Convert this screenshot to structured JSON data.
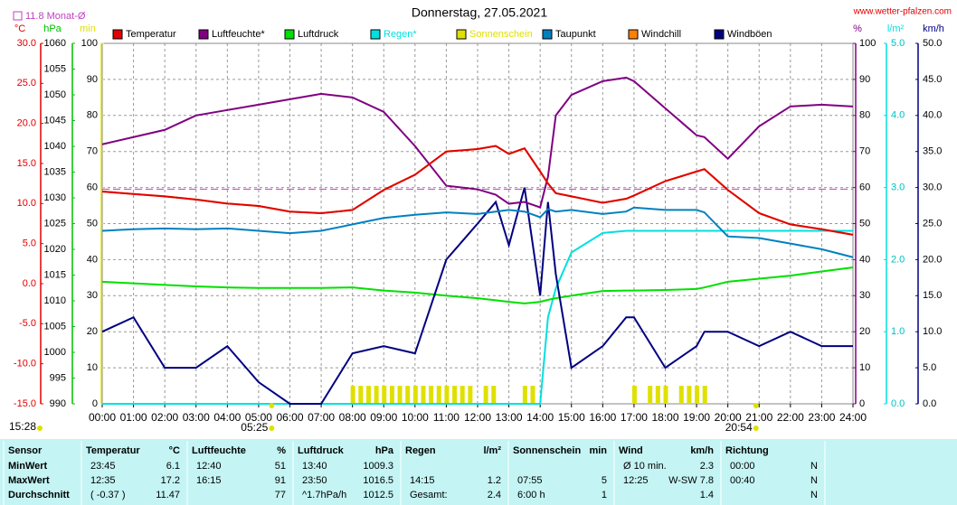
{
  "chart_data": {
    "type": "line",
    "title": "Donnerstag, 27.05.2021",
    "site": "www.wetter-pfalzen.com",
    "grid": true,
    "xlim": [
      0,
      24
    ],
    "xticks": [
      {
        "value": 0,
        "label": "00:00"
      },
      {
        "value": 1,
        "label": "01:00"
      },
      {
        "value": 2,
        "label": "02:00"
      },
      {
        "value": 3,
        "label": "03:00"
      },
      {
        "value": 4,
        "label": "04:00"
      },
      {
        "value": 5,
        "label": "05:00"
      },
      {
        "value": 6,
        "label": "06:00"
      },
      {
        "value": 7,
        "label": "07:00"
      },
      {
        "value": 8,
        "label": "08:00"
      },
      {
        "value": 9,
        "label": "09:00"
      },
      {
        "value": 10,
        "label": "10:00"
      },
      {
        "value": 11,
        "label": "11:00"
      },
      {
        "value": 12,
        "label": "12:00"
      },
      {
        "value": 13,
        "label": "13:00"
      },
      {
        "value": 14,
        "label": "14:00"
      },
      {
        "value": 15,
        "label": "15:00"
      },
      {
        "value": 16,
        "label": "16:00"
      },
      {
        "value": 17,
        "label": "17:00"
      },
      {
        "value": 18,
        "label": "18:00"
      },
      {
        "value": 19,
        "label": "19:00"
      },
      {
        "value": 20,
        "label": "20:00"
      },
      {
        "value": 21,
        "label": "21:00"
      },
      {
        "value": 22,
        "label": "22:00"
      },
      {
        "value": 23,
        "label": "23:00"
      },
      {
        "value": 24,
        "label": "24:00"
      }
    ],
    "axes": [
      {
        "unit": "°C",
        "side": "left",
        "color": "#e00000",
        "tick_color": "#e00000",
        "lim": [
          -15,
          30
        ],
        "ticks": [
          {
            "value": -15,
            "label": "-15.0"
          },
          {
            "value": -10,
            "label": "-10.0"
          },
          {
            "value": -5,
            "label": "-5.0"
          },
          {
            "value": 0,
            "label": "0.0"
          },
          {
            "value": 5,
            "label": "5.0"
          },
          {
            "value": 10,
            "label": "10.0"
          },
          {
            "value": 15,
            "label": "15.0"
          },
          {
            "value": 20,
            "label": "20.0"
          },
          {
            "value": 25,
            "label": "25.0"
          },
          {
            "value": 30,
            "label": "30.0"
          }
        ]
      },
      {
        "unit": "hPa",
        "side": "left",
        "color": "#00c000",
        "tick_color": "#000000",
        "lim": [
          990,
          1060
        ],
        "ticks": [
          990,
          995,
          1000,
          1005,
          1010,
          1015,
          1020,
          1025,
          1030,
          1035,
          1040,
          1045,
          1050,
          1055,
          1060
        ]
      },
      {
        "unit": "min",
        "side": "left",
        "color": "#e0e000",
        "tick_color": "#000000",
        "lim": [
          0,
          100
        ],
        "ticks": [
          0,
          10,
          20,
          30,
          40,
          50,
          60,
          70,
          80,
          90,
          100
        ]
      },
      {
        "unit": "%",
        "side": "right",
        "color": "#800080",
        "tick_color": "#000000",
        "lim": [
          0,
          100
        ],
        "ticks": [
          0,
          10,
          20,
          30,
          40,
          50,
          60,
          70,
          80,
          90,
          100
        ]
      },
      {
        "unit": "l/m²",
        "side": "right",
        "color": "#00e0e0",
        "tick_color": "#00c0c0",
        "lim": [
          0,
          5
        ],
        "ticks": [
          {
            "value": 0,
            "label": "0.0"
          },
          {
            "value": 1,
            "label": "1.0"
          },
          {
            "value": 2,
            "label": "2.0"
          },
          {
            "value": 3,
            "label": "3.0"
          },
          {
            "value": 4,
            "label": "4.0"
          },
          {
            "value": 5,
            "label": "5.0"
          }
        ]
      },
      {
        "unit": "km/h",
        "side": "right",
        "color": "#000080",
        "tick_color": "#000000",
        "lim": [
          0,
          50
        ],
        "ticks": [
          {
            "value": 0,
            "label": "0.0"
          },
          {
            "value": 5,
            "label": "5.0"
          },
          {
            "value": 10,
            "label": "10.0"
          },
          {
            "value": 15,
            "label": "15.0"
          },
          {
            "value": 20,
            "label": "20.0"
          },
          {
            "value": 25,
            "label": "25.0"
          },
          {
            "value": 30,
            "label": "30.0"
          },
          {
            "value": 35,
            "label": "35.0"
          },
          {
            "value": 40,
            "label": "40.0"
          },
          {
            "value": 45,
            "label": "45.0"
          },
          {
            "value": 50,
            "label": "50.0"
          }
        ]
      }
    ],
    "grid_axis": "min",
    "reference": {
      "label": "11.8 Monat-Ø",
      "value": 11.8,
      "axis": "°C",
      "color": "#c040c0"
    },
    "x": [
      0,
      1,
      2,
      3,
      4,
      5,
      6,
      7,
      8,
      9,
      10,
      11,
      12,
      12.58,
      13,
      13.5,
      14,
      14.25,
      14.5,
      15,
      16,
      16.75,
      17,
      18,
      19,
      19.25,
      20,
      21,
      22,
      23,
      24
    ],
    "series": [
      {
        "name": "Temperatur",
        "color": "#e00000",
        "label_color": "#000000",
        "axis": "°C",
        "values": [
          11.5,
          11.2,
          10.9,
          10.5,
          10.0,
          9.7,
          9.0,
          8.8,
          9.2,
          11.7,
          13.6,
          16.5,
          16.8,
          17.2,
          16.2,
          16.9,
          14.0,
          12.5,
          11.3,
          10.9,
          10.1,
          10.6,
          11.0,
          12.8,
          14.0,
          14.3,
          11.7,
          8.8,
          7.4,
          6.8,
          6.1
        ]
      },
      {
        "name": "Luftfeuchte*",
        "color": "#800080",
        "label_color": "#000000",
        "axis": "%",
        "values": [
          72,
          74,
          76,
          80,
          81.5,
          83,
          84.5,
          86,
          85,
          81,
          71.5,
          60.5,
          59.5,
          58,
          55.5,
          56,
          54.5,
          63,
          80,
          85.7,
          89.5,
          90.5,
          89.5,
          82,
          74.5,
          74,
          68,
          77,
          82.5,
          83,
          82.5
        ]
      },
      {
        "name": "Luftdruck",
        "color": "#00e000",
        "label_color": "#000000",
        "axis": "hPa",
        "values": [
          1013.7,
          1013.4,
          1013.1,
          1012.8,
          1012.6,
          1012.5,
          1012.5,
          1012.5,
          1012.6,
          1012.0,
          1011.6,
          1011.0,
          1010.5,
          1010.1,
          1009.8,
          1009.5,
          1009.8,
          1010.2,
          1010.5,
          1011.0,
          1011.9,
          1012.0,
          1012.0,
          1012.1,
          1012.3,
          1012.6,
          1013.7,
          1014.3,
          1014.9,
          1015.7,
          1016.5
        ]
      },
      {
        "name": "Regen*",
        "color": "#00e0e0",
        "label_color": "#00e0e0",
        "axis": "l/m²",
        "values": [
          0,
          0,
          0,
          0,
          0,
          0,
          0,
          0,
          0,
          0,
          0,
          0,
          0,
          0,
          0,
          0,
          0,
          1.2,
          1.6,
          2.1,
          2.37,
          2.4,
          2.4,
          2.4,
          2.4,
          2.4,
          2.4,
          2.4,
          2.4,
          2.4,
          2.4
        ]
      },
      {
        "name": "Sonnenschein",
        "color": "#e0e000",
        "label_color": "#e0e000",
        "axis": "min",
        "kind": "bar",
        "x": [
          8,
          8.25,
          8.5,
          8.75,
          9,
          9.25,
          9.5,
          9.75,
          10,
          10.25,
          10.5,
          10.75,
          11,
          11.25,
          11.5,
          11.75,
          12.25,
          12.5,
          13.5,
          13.75,
          17,
          17.5,
          17.75,
          18,
          18.5,
          18.75,
          19,
          19.25
        ],
        "values": [
          5,
          5,
          5,
          5,
          5,
          5,
          5,
          5,
          5,
          5,
          5,
          5,
          5,
          5,
          5,
          5,
          5,
          5,
          5,
          5,
          5,
          5,
          5,
          5,
          5,
          5,
          5,
          5
        ]
      },
      {
        "name": "Taupunkt",
        "color": "#0080c0",
        "label_color": "#000000",
        "axis": "°C",
        "values": [
          6.6,
          6.8,
          6.9,
          6.8,
          6.9,
          6.6,
          6.3,
          6.6,
          7.4,
          8.2,
          8.6,
          8.9,
          8.7,
          9.0,
          9.2,
          9.0,
          8.3,
          9.3,
          9.0,
          9.2,
          8.7,
          9.0,
          9.5,
          9.2,
          9.2,
          8.9,
          5.9,
          5.7,
          5.0,
          4.3,
          3.3
        ]
      },
      {
        "name": "Windchill",
        "color": "#ff8000",
        "label_color": "#000000",
        "axis": "°C",
        "values": [
          11.5,
          11.2,
          10.9,
          10.5,
          10.0,
          9.7,
          9.0,
          8.8,
          9.2,
          11.7,
          13.6,
          16.5,
          16.8,
          17.2,
          16.2,
          16.9,
          14.0,
          12.5,
          11.3,
          10.9,
          10.1,
          10.6,
          11.0,
          12.8,
          14.0,
          14.3,
          11.7,
          8.8,
          7.4,
          6.8,
          6.1
        ]
      },
      {
        "name": "Windböen",
        "color": "#000080",
        "label_color": "#000000",
        "axis": "km/h",
        "values": [
          10,
          12,
          5,
          5,
          8,
          3,
          0,
          0,
          7,
          8,
          7,
          20,
          25,
          28,
          22,
          30,
          15,
          28,
          18,
          5,
          8,
          12,
          12,
          5,
          8,
          10,
          10,
          8,
          10,
          8,
          8
        ]
      }
    ],
    "sun": {
      "now": "15:28",
      "sunrise": {
        "label": "05:25",
        "x": 5.417
      },
      "sunset": {
        "label": "20:54",
        "x": 20.9
      }
    }
  },
  "table": {
    "columns": [
      {
        "title": "Sensor"
      },
      {
        "title": "Temperatur",
        "unit": "°C"
      },
      {
        "title": "Luftfeuchte",
        "unit": "%"
      },
      {
        "title": "Luftdruck",
        "unit": "hPa"
      },
      {
        "title": "Regen",
        "unit": "l/m²"
      },
      {
        "title": "Sonnenschein",
        "unit": "min"
      },
      {
        "title": "Wind",
        "unit": "km/h"
      },
      {
        "title": "Richtung"
      }
    ],
    "rows": [
      {
        "label": "MinWert",
        "cells": [
          [
            "23:45",
            "6.1"
          ],
          [
            "12:40",
            "51"
          ],
          [
            "13:40",
            "1009.3"
          ],
          null,
          null,
          [
            "Ø 10 min.",
            "2.3"
          ],
          [
            "00:00",
            "N"
          ]
        ]
      },
      {
        "label": "MaxWert",
        "cells": [
          [
            "12:35",
            "17.2"
          ],
          [
            "16:15",
            "91"
          ],
          [
            "23:50",
            "1016.5"
          ],
          [
            "14:15",
            "1.2"
          ],
          [
            "07:55",
            "5"
          ],
          [
            "12:25",
            "W-SW 7.8"
          ],
          [
            "00:40",
            "N"
          ]
        ]
      },
      {
        "label": "Durchschnitt",
        "cells": [
          [
            "( -0.37 )",
            "11.47"
          ],
          [
            null,
            "77"
          ],
          [
            "^1.7hPa/h",
            "1012.5"
          ],
          [
            "Gesamt:",
            "2.4"
          ],
          [
            "6:00 h",
            "1"
          ],
          [
            null,
            "1.4"
          ],
          [
            null,
            "N"
          ]
        ]
      }
    ]
  }
}
